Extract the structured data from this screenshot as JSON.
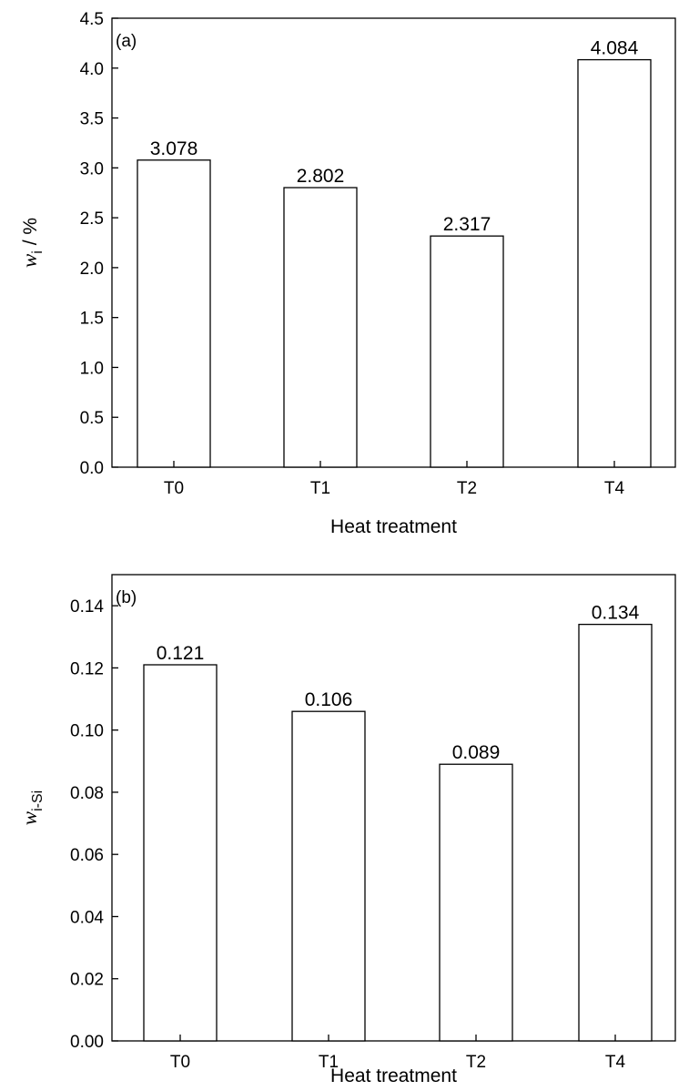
{
  "chart_data": [
    {
      "type": "bar",
      "panel_label": "(a)",
      "categories": [
        "T0",
        "T1",
        "T2",
        "T4"
      ],
      "values": [
        3.078,
        2.802,
        2.317,
        4.084
      ],
      "value_labels": [
        "3.078",
        "2.802",
        "2.317",
        "4.084"
      ],
      "xlabel": "Heat treatment",
      "ylabel": {
        "main": "w",
        "sub": "i",
        "suffix": " / %"
      },
      "ylim": [
        0,
        4.5
      ],
      "yticks": [
        0.0,
        0.5,
        1.0,
        1.5,
        2.0,
        2.5,
        3.0,
        3.5,
        4.0,
        4.5
      ],
      "ytick_labels": [
        "0.0",
        "0.5",
        "1.0",
        "1.5",
        "2.0",
        "2.5",
        "3.0",
        "3.5",
        "4.0",
        "4.5"
      ],
      "grid": false,
      "bar_fill": "#ffffff",
      "bar_edge": "#000000"
    },
    {
      "type": "bar",
      "panel_label": "(b)",
      "categories": [
        "T0",
        "T1",
        "T2",
        "T4"
      ],
      "values": [
        0.121,
        0.106,
        0.089,
        0.134
      ],
      "value_labels": [
        "0.121",
        "0.106",
        "0.089",
        "0.134"
      ],
      "xlabel": "Heat treatment",
      "ylabel": {
        "main": "w",
        "sub": "i-Si",
        "suffix": ""
      },
      "ylim": [
        0,
        0.15
      ],
      "yticks": [
        0.0,
        0.02,
        0.04,
        0.06,
        0.08,
        0.1,
        0.12,
        0.14
      ],
      "ytick_labels": [
        "0.00",
        "0.02",
        "0.04",
        "0.06",
        "0.08",
        "0.10",
        "0.12",
        "0.14"
      ],
      "grid": false,
      "bar_fill": "#ffffff",
      "bar_edge": "#000000"
    }
  ]
}
